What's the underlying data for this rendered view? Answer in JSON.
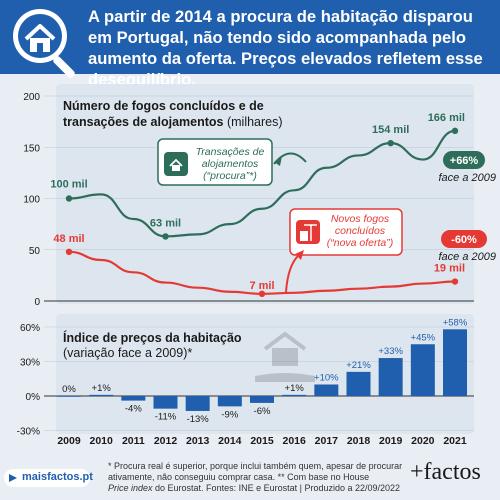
{
  "header": {
    "title": "A partir de 2014 a procura de habitação disparou em Portugal, não tendo sido acompanhada pelo aumento da oferta. Preços elevados refletem esse desequilíbrio.",
    "icon": "house-search-icon",
    "background": "#1f5fae"
  },
  "chart_data": [
    {
      "type": "line",
      "title_line1": "Número de fogos concluídos e de",
      "title_line2_bold": "transações de alojamentos",
      "title_line2_unit": "(milhares)",
      "ylim": [
        0,
        200
      ],
      "yticks": [
        "0",
        "50",
        "100",
        "150",
        "200"
      ],
      "x": [
        2009,
        2010,
        2011,
        2012,
        2013,
        2014,
        2015,
        2016,
        2017,
        2018,
        2019,
        2020,
        2021
      ],
      "series": [
        {
          "name": "Transações de alojamentos (“procura”*)",
          "color": "#2e6d5a",
          "values": [
            100,
            104,
            80,
            63,
            65,
            75,
            90,
            108,
            130,
            142,
            154,
            138,
            166
          ],
          "labels": [
            {
              "index": 0,
              "text": "100 mil"
            },
            {
              "index": 3,
              "text": "63 mil"
            },
            {
              "index": 10,
              "text": "154 mil"
            },
            {
              "index": 12,
              "text": "166 mil"
            }
          ],
          "legend_line1": "Transações de",
          "legend_line2": "alojamentos",
          "legend_line3": "(“procura”*)",
          "badge": "+66%",
          "badge_sub": "face a 2009"
        },
        {
          "name": "Novos fogos concluídos (“nova oferta”)",
          "color": "#e53935",
          "values": [
            48,
            40,
            28,
            18,
            13,
            9,
            7,
            8,
            10,
            12,
            14,
            17,
            19
          ],
          "labels": [
            {
              "index": 0,
              "text": "48 mil"
            },
            {
              "index": 6,
              "text": "7 mil"
            },
            {
              "index": 12,
              "text": "19 mil"
            }
          ],
          "legend_line1": "Novos fogos",
          "legend_line2": "concluídos",
          "legend_line3": "(“nova oferta”)",
          "badge": "-60%",
          "badge_sub": "face a 2009"
        }
      ]
    },
    {
      "type": "bar",
      "title_bold": "Índice de preços da habitação",
      "subtitle": "(variação face a 2009)*",
      "ylim": [
        -30,
        60
      ],
      "yticks": [
        "60%",
        "30%",
        "0%",
        "-30%"
      ],
      "color": "#1f5fae",
      "categories": [
        "2009",
        "2010",
        "2011",
        "2012",
        "2013",
        "2014",
        "2015",
        "2016",
        "2017",
        "2018",
        "2019",
        "2020",
        "2021"
      ],
      "values": [
        0,
        1,
        -4,
        -11,
        -13,
        -9,
        -6,
        1,
        10,
        21,
        33,
        45,
        58
      ],
      "labels": [
        "0%",
        "+1%",
        "-4%",
        "-11%",
        "-13%",
        "-9%",
        "-6%",
        "+1%",
        "+10%",
        "+21%",
        "+33%",
        "+45%",
        "+58%"
      ]
    }
  ],
  "footnote": {
    "line1": "* Procura real é superior, porque inclui também quem, apesar de procurar",
    "line2": "ativamente, não teve conseguiu comprar casa. ** Com base no House",
    "line2_actual": "ativamente, não conseguiu comprar casa. ** Com base no House",
    "line3_italic": "Price index",
    "line3_rest": " do Eurostat. Fontes: INE e Eurostat | Produzido a 22/09/2022"
  },
  "site": "maisfactos.pt",
  "brand": "+factos"
}
